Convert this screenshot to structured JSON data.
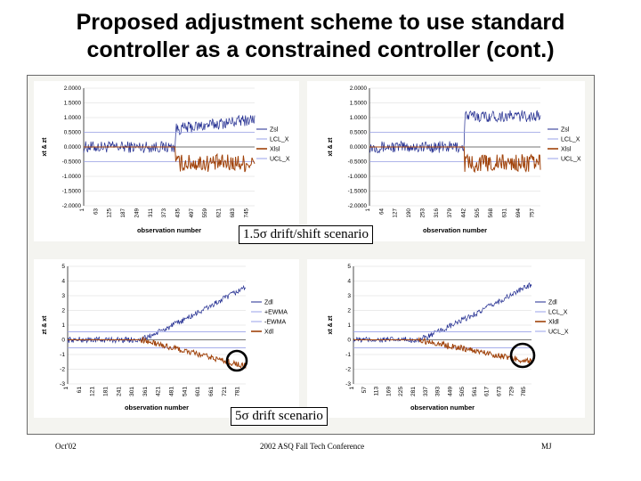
{
  "slide": {
    "title_line1": "Proposed adjustment scheme to use standard",
    "title_line2": "controller as a constrained controller (cont.)"
  },
  "captions": {
    "top": "1.5σ drift/shift scenario",
    "bottom": "5σ drift scenario"
  },
  "footer": {
    "left": "Oct'02",
    "center": "2002 ASQ Fall Tech Conference",
    "right": "MJ"
  },
  "colors": {
    "series_z": "#1f2a8f",
    "series_limits": "#9aa2e8",
    "series_x": "#a0420a",
    "highlight_circle": "#000000"
  },
  "chart_data": [
    {
      "type": "line",
      "scenario": "1.5 sigma drift/shift",
      "ylabel": "xt & zt",
      "xlabel": "observation number",
      "ylim": [
        -2.0,
        2.0
      ],
      "y_ticks": [
        "2.0000",
        "1.5000",
        "1.0000",
        "0.5000",
        "0.0000",
        "-0.5000",
        "-1.0000",
        "-1.5000",
        "-2.0000"
      ],
      "x_ticks": [
        "1",
        "63",
        "125",
        "187",
        "249",
        "311",
        "373",
        "435",
        "497",
        "559",
        "621",
        "683",
        "745"
      ],
      "x_range": [
        1,
        745
      ],
      "legend": [
        "Zsl",
        "LCL_X",
        "Xlsl",
        "UCL_X"
      ],
      "series": [
        {
          "name": "Zsl",
          "key": "z",
          "segments": [
            {
              "from": 1,
              "to": 400,
              "level": 0.0
            },
            {
              "from": 400,
              "to": 745,
              "level": 0.6,
              "slope_to": 0.95
            }
          ],
          "noise": 0.2
        },
        {
          "name": "LCL_X",
          "key": "lcl",
          "constant": -0.5
        },
        {
          "name": "Xlsl",
          "key": "x",
          "active_from": 400,
          "level": -0.55,
          "noise": 0.3
        },
        {
          "name": "UCL_X",
          "key": "ucl",
          "constant": 0.5
        }
      ]
    },
    {
      "type": "line",
      "scenario": "1.5 sigma drift/shift",
      "ylabel": "xt & zt",
      "xlabel": "observation number",
      "ylim": [
        -2.0,
        2.0
      ],
      "y_ticks": [
        "2.0000",
        "1.5000",
        "1.0000",
        "0.5000",
        "0.0000",
        "-0.5000",
        "-1.0000",
        "-1.5000",
        "-2.0000"
      ],
      "x_ticks": [
        "1",
        "64",
        "127",
        "190",
        "253",
        "316",
        "379",
        "442",
        "505",
        "568",
        "631",
        "694",
        "757"
      ],
      "x_range": [
        1,
        757
      ],
      "legend": [
        "Zsl",
        "LCL_X",
        "Xlsl",
        "UCL_X"
      ],
      "series": [
        {
          "name": "Zsl",
          "key": "z",
          "segments": [
            {
              "from": 1,
              "to": 420,
              "level": 0.0
            },
            {
              "from": 420,
              "to": 757,
              "level": 1.05,
              "slope_to": 1.05
            }
          ],
          "noise": 0.2
        },
        {
          "name": "LCL_X",
          "key": "lcl",
          "constant": -0.5
        },
        {
          "name": "Xlsl",
          "key": "x",
          "active_from": 420,
          "level": -0.55,
          "noise": 0.3
        },
        {
          "name": "UCL_X",
          "key": "ucl",
          "constant": 0.5
        }
      ]
    },
    {
      "type": "line",
      "scenario": "5 sigma drift",
      "ylabel": "zt & xt",
      "xlabel": "observation number",
      "ylim": [
        -3,
        5
      ],
      "y_ticks": [
        "5",
        "4",
        "3",
        "2",
        "1",
        "0",
        "-1",
        "-2",
        "-3"
      ],
      "x_ticks": [
        "1",
        "61",
        "121",
        "181",
        "241",
        "301",
        "361",
        "421",
        "481",
        "541",
        "601",
        "661",
        "721",
        "781"
      ],
      "x_range": [
        1,
        781
      ],
      "legend": [
        "Zdl",
        "+EWMA",
        "-EWMA",
        "Xdl"
      ],
      "series": [
        {
          "name": "Zdl",
          "key": "z",
          "drift_start": 320,
          "start": 0.0,
          "end": 3.6,
          "noise": 0.2
        },
        {
          "name": "+EWMA",
          "key": "ucl",
          "constant": 0.55
        },
        {
          "name": "-EWMA",
          "key": "lcl",
          "constant": -0.55
        },
        {
          "name": "Xdl",
          "key": "x",
          "active_from": 320,
          "start": 0.0,
          "end": -1.8,
          "noise": 0.2
        }
      ]
    },
    {
      "type": "line",
      "scenario": "5 sigma drift",
      "ylabel": "xt & zt",
      "xlabel": "observation number",
      "ylim": [
        -3,
        5
      ],
      "y_ticks": [
        "5",
        "4",
        "3",
        "2",
        "1",
        "0",
        "-1",
        "-2",
        "-3"
      ],
      "x_ticks": [
        "1",
        "57",
        "113",
        "169",
        "225",
        "281",
        "337",
        "393",
        "449",
        "505",
        "561",
        "617",
        "673",
        "729",
        "785"
      ],
      "x_range": [
        1,
        785
      ],
      "legend": [
        "Zdl",
        "LCL_X",
        "Xldl",
        "UCL_X"
      ],
      "series": [
        {
          "name": "Zdl",
          "key": "z",
          "drift_start": 290,
          "start": 0.0,
          "end": 3.8,
          "noise": 0.2
        },
        {
          "name": "LCL_X",
          "key": "lcl",
          "constant": -0.55
        },
        {
          "name": "Xldl",
          "key": "x",
          "active_from": 290,
          "start": 0.0,
          "end": -1.5,
          "noise": 0.2
        },
        {
          "name": "UCL_X",
          "key": "ucl",
          "constant": 0.55
        }
      ]
    }
  ]
}
